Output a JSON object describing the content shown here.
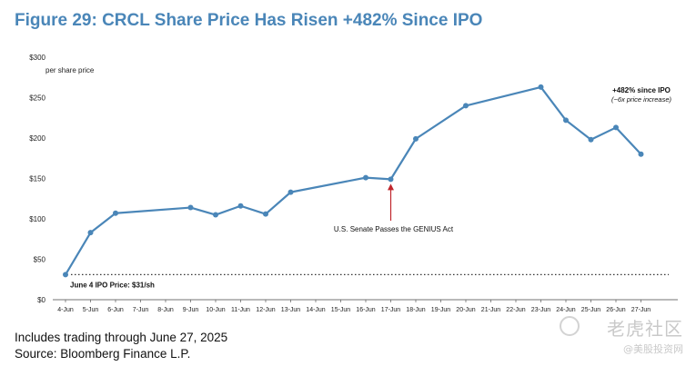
{
  "figure": {
    "title": "Figure 29: CRCL Share Price Has Risen +482% Since IPO",
    "notes": [
      "Includes trading through June 27, 2025",
      "Source: Bloomberg Finance L.P."
    ]
  },
  "watermark": {
    "logo_text": "老虎社区",
    "sub_text": "@美股投资网"
  },
  "colors": {
    "title": "#4a86b8",
    "series": "#4a86b8",
    "annotation_arrow": "#c0262c",
    "axis_text": "#222222"
  },
  "chart_data": {
    "type": "line",
    "title": "",
    "ylabel": "per share price",
    "xlabel": "",
    "ylim": [
      0,
      300
    ],
    "yticks": [
      "$0",
      "$50",
      "$100",
      "$150",
      "$200",
      "$250",
      "$300"
    ],
    "ytick_values": [
      0,
      50,
      100,
      150,
      200,
      250,
      300
    ],
    "categories": [
      "4-Jun",
      "5-Jun",
      "6-Jun",
      "7-Jun",
      "8-Jun",
      "9-Jun",
      "10-Jun",
      "11-Jun",
      "12-Jun",
      "13-Jun",
      "14-Jun",
      "15-Jun",
      "16-Jun",
      "17-Jun",
      "18-Jun",
      "19-Jun",
      "20-Jun",
      "21-Jun",
      "22-Jun",
      "23-Jun",
      "24-Jun",
      "25-Jun",
      "26-Jun",
      "27-Jun"
    ],
    "series": [
      {
        "name": "",
        "points": [
          {
            "x": "4-Jun",
            "y": 31
          },
          {
            "x": "5-Jun",
            "y": 83
          },
          {
            "x": "6-Jun",
            "y": 107
          },
          {
            "x": "9-Jun",
            "y": 114
          },
          {
            "x": "10-Jun",
            "y": 105
          },
          {
            "x": "11-Jun",
            "y": 116
          },
          {
            "x": "12-Jun",
            "y": 106
          },
          {
            "x": "13-Jun",
            "y": 133
          },
          {
            "x": "16-Jun",
            "y": 151
          },
          {
            "x": "17-Jun",
            "y": 149
          },
          {
            "x": "18-Jun",
            "y": 199
          },
          {
            "x": "20-Jun",
            "y": 240
          },
          {
            "x": "23-Jun",
            "y": 263
          },
          {
            "x": "24-Jun",
            "y": 222
          },
          {
            "x": "25-Jun",
            "y": 198
          },
          {
            "x": "26-Jun",
            "y": 213
          },
          {
            "x": "27-Jun",
            "y": 180
          }
        ]
      }
    ],
    "reference_line": {
      "y": 31,
      "label": "June 4 IPO Price: $31/sh",
      "style": "dotted"
    },
    "annotations": [
      {
        "text": "U.S. Senate Passes the GENIUS Act",
        "x": "17-Jun",
        "y": 149
      },
      {
        "text": "+482% since IPO",
        "subtext": "(~6x price increase)",
        "x": "27-Jun",
        "y": 263
      }
    ],
    "grid": false,
    "legend": "none"
  }
}
